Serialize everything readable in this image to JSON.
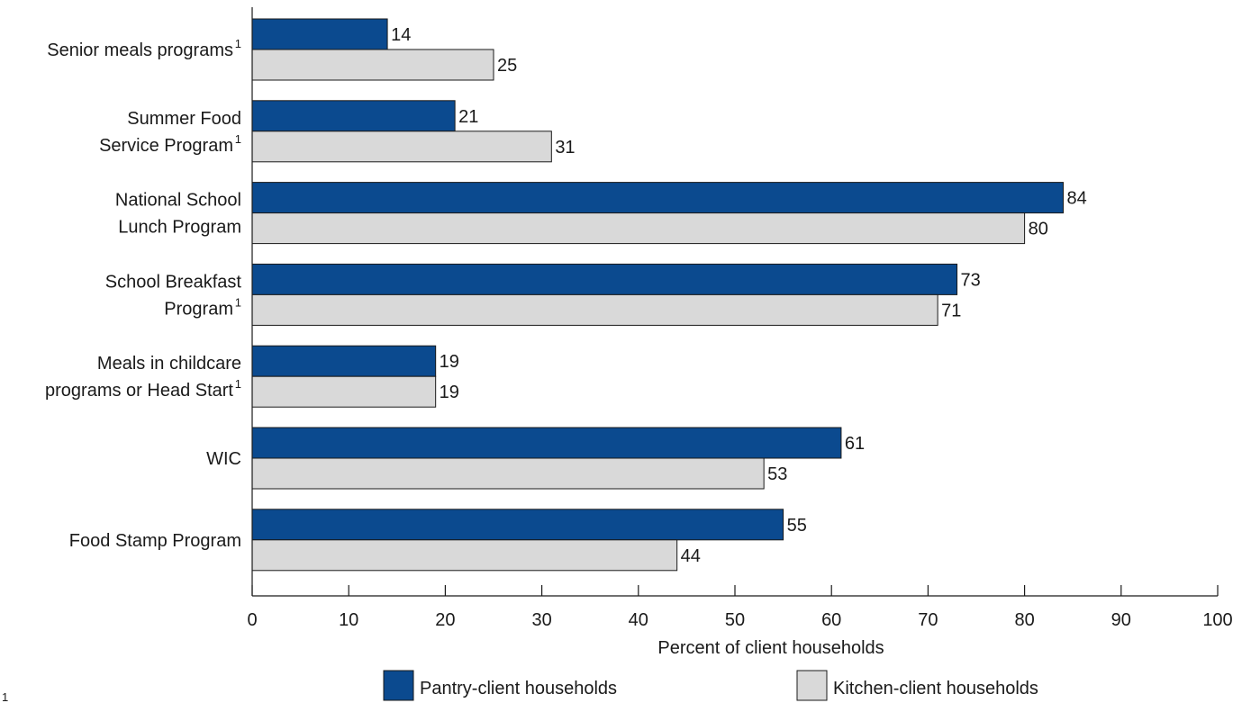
{
  "chart_data": {
    "type": "bar",
    "orientation": "horizontal",
    "categories": [
      {
        "lines": [
          "Senior meals programs"
        ],
        "superscript": "1"
      },
      {
        "lines": [
          "Summer Food",
          "Service Program"
        ],
        "superscript": "1"
      },
      {
        "lines": [
          "National School",
          "Lunch Program"
        ],
        "superscript": ""
      },
      {
        "lines": [
          "School Breakfast",
          "Program"
        ],
        "superscript": "1"
      },
      {
        "lines": [
          "Meals in childcare",
          "programs or Head Start"
        ],
        "superscript": "1"
      },
      {
        "lines": [
          "WIC"
        ],
        "superscript": ""
      },
      {
        "lines": [
          "Food Stamp Program"
        ],
        "superscript": ""
      }
    ],
    "series": [
      {
        "name": "Pantry-client households",
        "color": "#0b4a8f",
        "values": [
          14,
          21,
          84,
          73,
          19,
          61,
          55
        ]
      },
      {
        "name": "Kitchen-client households",
        "color": "#d9d9d9",
        "values": [
          25,
          31,
          80,
          71,
          19,
          53,
          44
        ]
      }
    ],
    "xlabel": "Percent of client households",
    "xlim": [
      0,
      100
    ],
    "xticks": [
      0,
      10,
      20,
      30,
      40,
      50,
      60,
      70,
      80,
      90,
      100
    ],
    "grid": false,
    "legend_position": "bottom",
    "footnote_marker": "1"
  }
}
